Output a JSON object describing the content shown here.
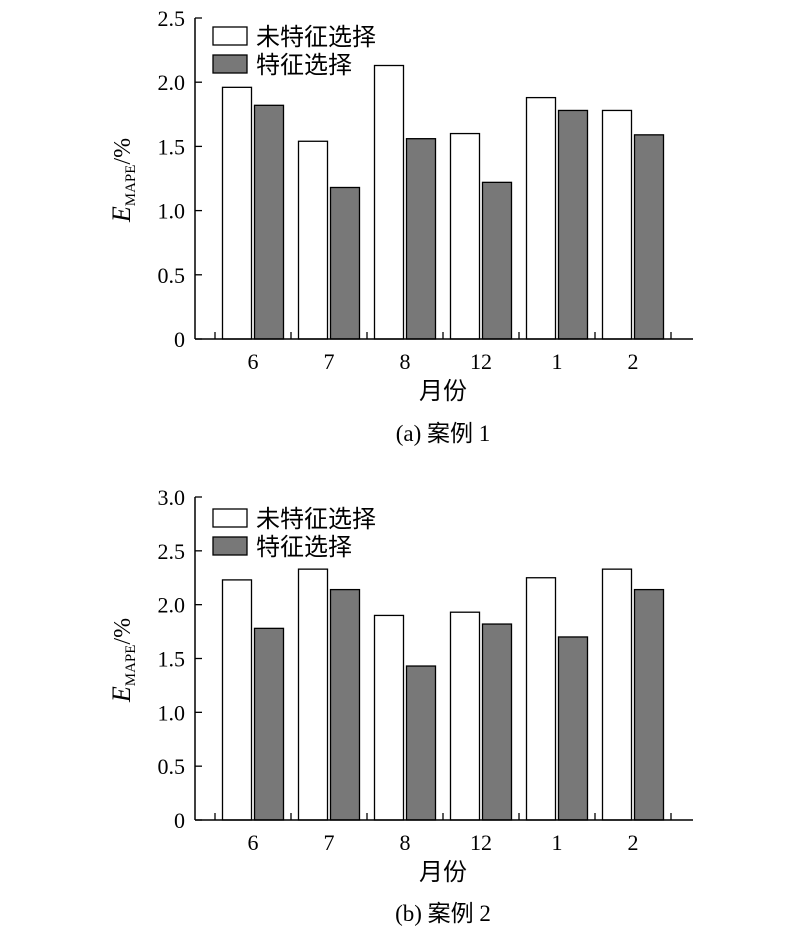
{
  "charts": [
    {
      "caption": "(a) 案例 1",
      "chart_data": {
        "type": "bar",
        "categories": [
          "6",
          "7",
          "8",
          "12",
          "1",
          "2"
        ],
        "series": [
          {
            "name": "未特征选择",
            "values": [
              1.96,
              1.54,
              2.13,
              1.6,
              1.88,
              1.78
            ],
            "color": "#ffffff"
          },
          {
            "name": "特征选择",
            "values": [
              1.82,
              1.18,
              1.56,
              1.22,
              1.78,
              1.59
            ],
            "color": "#787878"
          }
        ],
        "xlabel": "月份",
        "ylabel_main": "E",
        "ylabel_sub": "MAPE",
        "ylabel_unit": "/%",
        "ylim": [
          0,
          2.5
        ],
        "yticks": [
          "0",
          "0.5",
          "1.0",
          "1.5",
          "2.0",
          "2.5"
        ],
        "legend": "top-left",
        "grid": false
      }
    },
    {
      "caption": "(b) 案例 2",
      "chart_data": {
        "type": "bar",
        "categories": [
          "6",
          "7",
          "8",
          "12",
          "1",
          "2"
        ],
        "series": [
          {
            "name": "未特征选择",
            "values": [
              2.23,
              2.33,
              1.9,
              1.93,
              2.25,
              2.33
            ],
            "color": "#ffffff"
          },
          {
            "name": "特征选择",
            "values": [
              1.78,
              2.14,
              1.43,
              1.82,
              1.7,
              2.14
            ],
            "color": "#787878"
          }
        ],
        "xlabel": "月份",
        "ylabel_main": "E",
        "ylabel_sub": "MAPE",
        "ylabel_unit": "/%",
        "ylim": [
          0,
          3.0
        ],
        "yticks": [
          "0",
          "0.5",
          "1.0",
          "1.5",
          "2.0",
          "2.5",
          "3.0"
        ],
        "legend": "top-left",
        "grid": false
      }
    }
  ]
}
